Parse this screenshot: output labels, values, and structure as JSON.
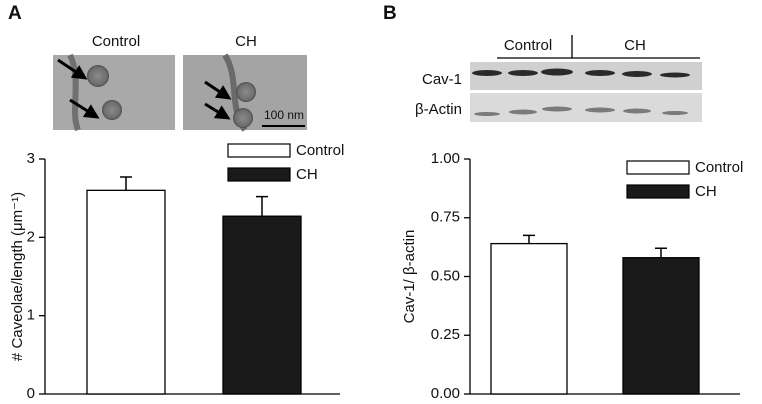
{
  "panels": [
    {
      "label": "A",
      "image_labels": [
        "Control",
        "CH"
      ],
      "scale_bar": "100 nm"
    },
    {
      "label": "B",
      "blot_groups": [
        "Control",
        "CH"
      ],
      "blot_rows": [
        "Cav-1",
        "β-Actin"
      ]
    }
  ],
  "chart_data": [
    {
      "type": "bar",
      "y_label": "# Caveolae/length (μm⁻¹)",
      "series": [
        {
          "name": "Control",
          "color": "#ffffff",
          "values": [
            2.6
          ],
          "errors": [
            0.17
          ]
        },
        {
          "name": "CH",
          "color": "#1a1a1a",
          "values": [
            2.27
          ],
          "errors": [
            0.25
          ]
        }
      ],
      "ylim": [
        0,
        3
      ],
      "yticks": [
        0,
        1,
        2,
        3
      ]
    },
    {
      "type": "bar",
      "y_label": "Cav-1/ β-actin",
      "series": [
        {
          "name": "Control",
          "color": "#ffffff",
          "values": [
            0.64
          ],
          "errors": [
            0.035
          ]
        },
        {
          "name": "CH",
          "color": "#1a1a1a",
          "values": [
            0.58
          ],
          "errors": [
            0.04
          ]
        }
      ],
      "ylim": [
        0,
        1
      ],
      "yticks": [
        {
          "value": 0,
          "label": "0.00"
        },
        {
          "value": 0.25,
          "label": "0.25"
        },
        {
          "value": 0.5,
          "label": "0.50"
        },
        {
          "value": 0.75,
          "label": "0.75"
        },
        {
          "value": 1,
          "label": "1.00"
        }
      ]
    }
  ]
}
